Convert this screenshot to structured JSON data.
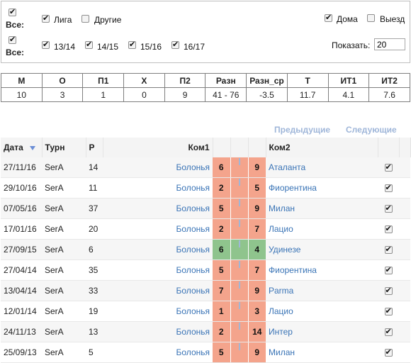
{
  "filters": {
    "all_label": "Все:",
    "league_label": "Лига",
    "other_label": "Другие",
    "home_label": "Дома",
    "away_label": "Выезд",
    "seasons": [
      "13/14",
      "14/15",
      "15/16",
      "16/17"
    ],
    "show_label": "Показать:",
    "show_value": "20"
  },
  "summary": {
    "headers": [
      "М",
      "О",
      "П1",
      "Х",
      "П2",
      "Разн",
      "Разн_ср",
      "Т",
      "ИТ1",
      "ИТ2"
    ],
    "values": [
      "10",
      "3",
      "1",
      "0",
      "9",
      "41 - 76",
      "-3.5",
      "11.7",
      "4.1",
      "7.6"
    ]
  },
  "nav": {
    "prev": "Предыдущие",
    "next": "Следующие"
  },
  "games": {
    "headers": {
      "date": "Дата",
      "tourn": "Турн",
      "round": "Р",
      "team1": "Ком1",
      "team2": "Ком2"
    },
    "colors": {
      "loss": "#f4a48c",
      "win": "#8fc48d"
    },
    "rows": [
      {
        "date": "27/11/16",
        "tourn": "SerA",
        "round": "14",
        "team1": "Болонья",
        "s1": "6",
        "s2": "9",
        "team2": "Аталанта",
        "result": "loss"
      },
      {
        "date": "29/10/16",
        "tourn": "SerA",
        "round": "11",
        "team1": "Болонья",
        "s1": "2",
        "s2": "5",
        "team2": "Фиорентина",
        "result": "loss"
      },
      {
        "date": "07/05/16",
        "tourn": "SerA",
        "round": "37",
        "team1": "Болонья",
        "s1": "5",
        "s2": "9",
        "team2": "Милан",
        "result": "loss"
      },
      {
        "date": "17/01/16",
        "tourn": "SerA",
        "round": "20",
        "team1": "Болонья",
        "s1": "2",
        "s2": "7",
        "team2": "Лацио",
        "result": "loss"
      },
      {
        "date": "27/09/15",
        "tourn": "SerA",
        "round": "6",
        "team1": "Болонья",
        "s1": "6",
        "s2": "4",
        "team2": "Удинезе",
        "result": "win"
      },
      {
        "date": "27/04/14",
        "tourn": "SerA",
        "round": "35",
        "team1": "Болонья",
        "s1": "5",
        "s2": "7",
        "team2": "Фиорентина",
        "result": "loss"
      },
      {
        "date": "13/04/14",
        "tourn": "SerA",
        "round": "33",
        "team1": "Болонья",
        "s1": "7",
        "s2": "9",
        "team2": "Parma",
        "result": "loss"
      },
      {
        "date": "12/01/14",
        "tourn": "SerA",
        "round": "19",
        "team1": "Болонья",
        "s1": "1",
        "s2": "3",
        "team2": "Лацио",
        "result": "loss"
      },
      {
        "date": "24/11/13",
        "tourn": "SerA",
        "round": "13",
        "team1": "Болонья",
        "s1": "2",
        "s2": "14",
        "team2": "Интер",
        "result": "loss"
      },
      {
        "date": "25/09/13",
        "tourn": "SerA",
        "round": "5",
        "team1": "Болонья",
        "s1": "5",
        "s2": "9",
        "team2": "Милан",
        "result": "loss"
      }
    ]
  }
}
